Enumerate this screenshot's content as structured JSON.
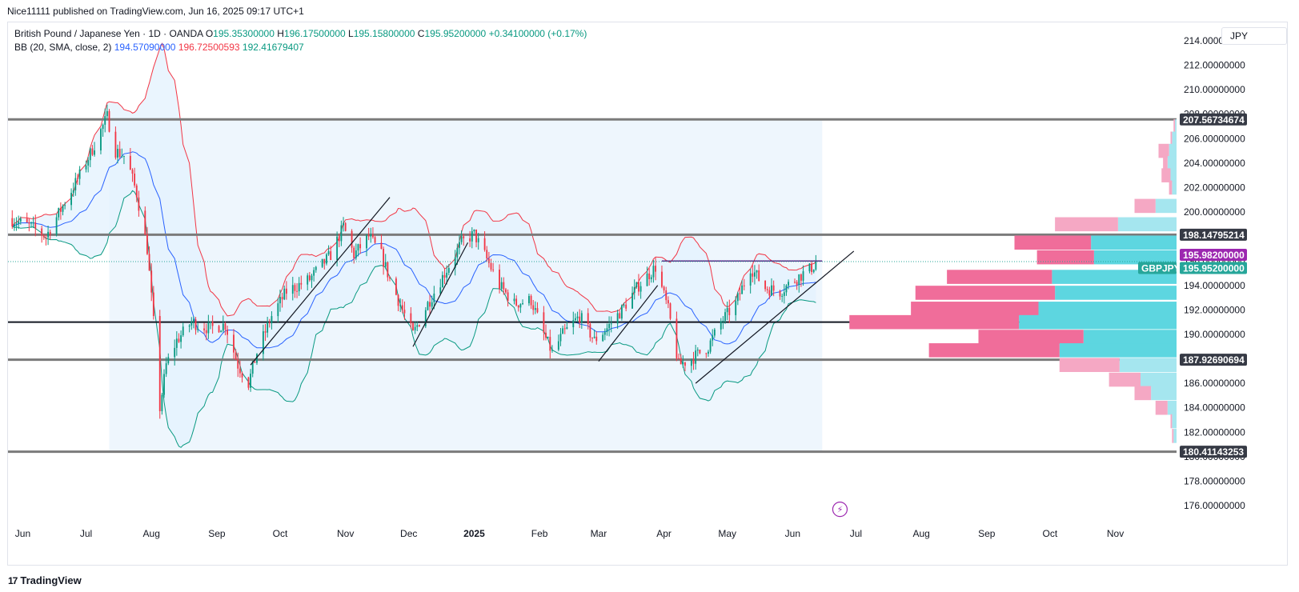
{
  "publisher": "Nice11111 published on TradingView.com, Jun 16, 2025 09:17 UTC+1",
  "legend": {
    "symbol": "British Pound / Japanese Yen · 1D · OANDA",
    "open_label": "O",
    "open": "195.35300000",
    "high_label": "H",
    "high": "196.17500000",
    "low_label": "L",
    "low": "195.15800000",
    "close_label": "C",
    "close": "195.95200000",
    "change": "+0.34100000 (+0.17%)",
    "bb_label": "BB (20, SMA, close, 2)",
    "bb_basis": "194.57090000",
    "bb_upper": "196.72500593",
    "bb_lower": "192.41679407"
  },
  "currency": "JPY",
  "brand": "TradingView",
  "brand_icon": "17",
  "colors": {
    "up": "#089981",
    "down": "#f23645",
    "basis": "#2962ff",
    "upper": "#f23645",
    "lower": "#089981",
    "band_fill": "#e3f2fd",
    "zone_fill": "#eef6fd",
    "level_line": "#7b7b7b",
    "vp_up": "#5dd6e0",
    "vp_down": "#f06d9a",
    "vp_up_light": "#a5e6ef",
    "vp_down_light": "#f5a8c4",
    "tag_dark": "#363a45",
    "tag_purple": "#9c27b0",
    "tag_green": "#26a69a"
  },
  "chart_data": {
    "type": "candlestick",
    "symbol": "GBPJPY",
    "ylim": [
      174.5,
      215.5
    ],
    "y_ticks": [
      "214.00000000",
      "212.00000000",
      "210.00000000",
      "208.00000000",
      "206.00000000",
      "204.00000000",
      "202.00000000",
      "200.00000000",
      "198.00000000",
      "196.00000000",
      "194.00000000",
      "192.00000000",
      "190.00000000",
      "188.00000000",
      "186.00000000",
      "184.00000000",
      "182.00000000",
      "180.00000000",
      "178.00000000",
      "176.00000000"
    ],
    "x_range": [
      "2024-05-25",
      "2025-11-30"
    ],
    "x_ticks": [
      {
        "label": "Jun",
        "date": "2024-06-01"
      },
      {
        "label": "Jul",
        "date": "2024-07-01"
      },
      {
        "label": "Aug",
        "date": "2024-08-01"
      },
      {
        "label": "Sep",
        "date": "2024-09-01"
      },
      {
        "label": "Oct",
        "date": "2024-10-01"
      },
      {
        "label": "Nov",
        "date": "2024-11-01"
      },
      {
        "label": "Dec",
        "date": "2024-12-01"
      },
      {
        "label": "2025",
        "date": "2025-01-01",
        "bold": true
      },
      {
        "label": "Feb",
        "date": "2025-02-01"
      },
      {
        "label": "Mar",
        "date": "2025-03-01"
      },
      {
        "label": "Apr",
        "date": "2025-04-01"
      },
      {
        "label": "May",
        "date": "2025-05-01"
      },
      {
        "label": "Jun",
        "date": "2025-06-01"
      },
      {
        "label": "Jul",
        "date": "2025-07-01"
      },
      {
        "label": "Aug",
        "date": "2025-08-01"
      },
      {
        "label": "Sep",
        "date": "2025-09-01"
      },
      {
        "label": "Oct",
        "date": "2025-10-01"
      },
      {
        "label": "Nov",
        "date": "2025-11-01"
      }
    ],
    "price_path": [
      [
        "2024-05-25",
        199.5
      ],
      [
        "2024-06-05",
        198.8
      ],
      [
        "2024-06-12",
        198.0
      ],
      [
        "2024-06-20",
        200.5
      ],
      [
        "2024-06-28",
        203.0
      ],
      [
        "2024-07-05",
        205.5
      ],
      [
        "2024-07-11",
        207.8
      ],
      [
        "2024-07-15",
        205.0
      ],
      [
        "2024-07-20",
        204.5
      ],
      [
        "2024-07-25",
        201.5
      ],
      [
        "2024-07-30",
        197.0
      ],
      [
        "2024-08-02",
        191.0
      ],
      [
        "2024-08-05",
        184.0
      ],
      [
        "2024-08-08",
        187.5
      ],
      [
        "2024-08-13",
        189.5
      ],
      [
        "2024-08-20",
        191.0
      ],
      [
        "2024-08-28",
        190.5
      ],
      [
        "2024-09-05",
        190.8
      ],
      [
        "2024-09-11",
        187.5
      ],
      [
        "2024-09-16",
        186.0
      ],
      [
        "2024-09-20",
        188.5
      ],
      [
        "2024-09-27",
        191.5
      ],
      [
        "2024-10-04",
        193.5
      ],
      [
        "2024-10-15",
        194.5
      ],
      [
        "2024-10-25",
        196.5
      ],
      [
        "2024-10-31",
        198.8
      ],
      [
        "2024-11-05",
        196.5
      ],
      [
        "2024-11-12",
        198.0
      ],
      [
        "2024-11-18",
        196.5
      ],
      [
        "2024-11-22",
        194.5
      ],
      [
        "2024-11-28",
        192.0
      ],
      [
        "2024-12-03",
        190.0
      ],
      [
        "2024-12-10",
        192.5
      ],
      [
        "2024-12-18",
        195.0
      ],
      [
        "2024-12-26",
        197.5
      ],
      [
        "2025-01-01",
        198.2
      ],
      [
        "2025-01-06",
        196.5
      ],
      [
        "2025-01-13",
        194.0
      ],
      [
        "2025-01-20",
        192.5
      ],
      [
        "2025-01-28",
        192.8
      ],
      [
        "2025-02-03",
        190.0
      ],
      [
        "2025-02-07",
        188.5
      ],
      [
        "2025-02-12",
        190.0
      ],
      [
        "2025-02-20",
        191.5
      ],
      [
        "2025-02-27",
        189.5
      ],
      [
        "2025-03-05",
        190.5
      ],
      [
        "2025-03-12",
        192.0
      ],
      [
        "2025-03-20",
        194.0
      ],
      [
        "2025-03-28",
        195.5
      ],
      [
        "2025-04-03",
        192.0
      ],
      [
        "2025-04-08",
        187.5
      ],
      [
        "2025-04-14",
        188.0
      ],
      [
        "2025-04-22",
        189.0
      ],
      [
        "2025-04-28",
        191.0
      ],
      [
        "2025-05-05",
        192.5
      ],
      [
        "2025-05-12",
        195.5
      ],
      [
        "2025-05-19",
        193.8
      ],
      [
        "2025-05-26",
        193.5
      ],
      [
        "2025-06-02",
        194.5
      ],
      [
        "2025-06-09",
        195.3
      ],
      [
        "2025-06-13",
        195.95
      ]
    ],
    "bollinger": {
      "period": 20,
      "stddev": 2,
      "last": {
        "basis": 194.5709,
        "upper": 196.72500593,
        "lower": 192.41679407
      }
    },
    "horizontal_levels": [
      {
        "price": 207.56734674,
        "label": "207.56734674",
        "color": "gray"
      },
      {
        "price": 198.14795214,
        "label": "198.14795214",
        "color": "gray"
      },
      {
        "price": 191.0,
        "label": "",
        "color": "black"
      },
      {
        "price": 187.92690694,
        "label": "187.92690694",
        "color": "gray"
      },
      {
        "price": 180.41143253,
        "label": "180.41143253",
        "color": "gray"
      }
    ],
    "price_tags": [
      {
        "price": 195.982,
        "label": "195.98200000",
        "color": "purple"
      },
      {
        "price": 195.952,
        "label": "195.95200000",
        "symbol": "GBPJPY",
        "color": "green"
      }
    ],
    "zone": {
      "x_start": "2024-07-12",
      "x_end": "2025-06-15",
      "top": 207.56734674,
      "bottom": 180.41143253
    },
    "resistance_line": {
      "x_start": "2025-03-31",
      "x_end": "2025-06-15",
      "price": 196.0
    },
    "trendlines": [
      {
        "x1": "2024-09-17",
        "y1": 187.5,
        "x2": "2024-11-22",
        "y2": 201.2
      },
      {
        "x1": "2024-12-03",
        "y1": 189.0,
        "x2": "2024-12-29",
        "y2": 197.5
      },
      {
        "x1": "2025-03-01",
        "y1": 187.8,
        "x2": "2025-03-29",
        "y2": 194.0
      },
      {
        "x1": "2025-04-16",
        "y1": 186.0,
        "x2": "2025-06-30",
        "y2": 196.8
      }
    ],
    "volume_profile": [
      {
        "price": 207.0,
        "up": 2,
        "down": 2
      },
      {
        "price": 206.0,
        "up": 6,
        "down": 2
      },
      {
        "price": 205.0,
        "up": 10,
        "down": 14
      },
      {
        "price": 204.0,
        "up": 12,
        "down": 6
      },
      {
        "price": 203.0,
        "up": 8,
        "down": 12
      },
      {
        "price": 202.0,
        "up": 6,
        "down": 4
      },
      {
        "price": 200.5,
        "up": 28,
        "down": 28
      },
      {
        "price": 199.0,
        "up": 78,
        "down": 84
      },
      {
        "price": 197.5,
        "up": 114,
        "down": 102
      },
      {
        "price": 196.3,
        "up": 110,
        "down": 76
      },
      {
        "price": 194.7,
        "up": 166,
        "down": 140
      },
      {
        "price": 193.4,
        "up": 162,
        "down": 186
      },
      {
        "price": 192.1,
        "up": 184,
        "down": 170
      },
      {
        "price": 191.0,
        "up": 210,
        "down": 226
      },
      {
        "price": 189.8,
        "up": 124,
        "down": 140
      },
      {
        "price": 188.7,
        "up": 156,
        "down": 174
      },
      {
        "price": 187.5,
        "up": 76,
        "down": 80
      },
      {
        "price": 186.3,
        "up": 48,
        "down": 42
      },
      {
        "price": 185.2,
        "up": 34,
        "down": 22
      },
      {
        "price": 184.0,
        "up": 12,
        "down": 16
      },
      {
        "price": 182.9,
        "up": 6,
        "down": 2
      },
      {
        "price": 181.7,
        "up": 4,
        "down": 2
      }
    ],
    "event_marker": {
      "date": "2025-06-09",
      "price": 175.7,
      "symbol": "⚡"
    }
  }
}
